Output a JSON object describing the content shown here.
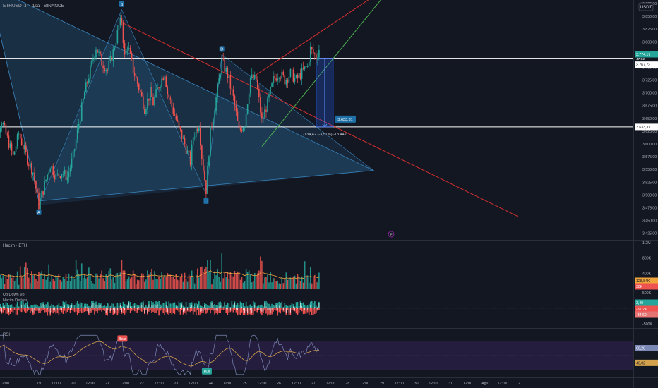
{
  "header": {
    "symbol_title": "ETHUSDT.P · 1sa · BINANCE",
    "currency": "USDT"
  },
  "colors": {
    "background": "#131722",
    "up": "#26a69a",
    "down": "#ef5350",
    "triangle_fill": "#2a6f9e",
    "trend_red": "#d32f2f",
    "trend_green": "#4caf50",
    "level_line": "#ffffff",
    "ma_volume": "#f0a53c",
    "rsi_line": "#7b87b5",
    "rsi_ma": "#d4a24c",
    "rsi_band": "#2a1f45",
    "axis_text": "#b2b5be",
    "grid": "#1e222d",
    "label_bg": "#2962ff"
  },
  "chart_data": [
    {
      "type": "candlestick",
      "pane": "price",
      "ylim": [
        3412,
        3882
      ],
      "price_ticks": [
        "3.875,00",
        "3.850,00",
        "3.825,00",
        "3.800,00",
        "3.775,00",
        "3.750,00",
        "3.725,00",
        "3.700,00",
        "3.675,00",
        "3.650,00",
        "3.625,00",
        "3.600,00",
        "3.575,00",
        "3.550,00",
        "3.525,00",
        "3.500,00",
        "3.475,00",
        "3.450,00",
        "3.425,00"
      ],
      "price_tick_values": [
        3875,
        3850,
        3825,
        3800,
        3775,
        3750,
        3725,
        3700,
        3675,
        3650,
        3625,
        3600,
        3575,
        3550,
        3525,
        3500,
        3475,
        3450,
        3425
      ],
      "x_labels": [
        "12:00",
        "19",
        "12:00",
        "20",
        "12:00",
        "21",
        "12:00",
        "22",
        "12:00",
        "23",
        "12:00",
        "24",
        "12:00",
        "25",
        "12:00",
        "26",
        "12:00",
        "27",
        "12:00",
        "28",
        "12:00",
        "29",
        "12:00",
        "30",
        "12:00",
        "31",
        "12:00",
        "Ağu",
        "12:00",
        "2"
      ],
      "x_label_hours": [
        -24,
        0,
        12,
        24,
        36,
        48,
        60,
        72,
        84,
        96,
        108,
        120,
        132,
        144,
        156,
        168,
        180,
        192,
        204,
        216,
        228,
        240,
        252,
        264,
        276,
        288,
        300,
        312,
        324,
        336
      ],
      "time_origin_label": "19",
      "close_path": [
        [
          -35,
          3520
        ],
        [
          -33,
          3660
        ],
        [
          -30,
          3620
        ],
        [
          -26,
          3645
        ],
        [
          -22,
          3610
        ],
        [
          -18,
          3575
        ],
        [
          -14,
          3620
        ],
        [
          -8,
          3570
        ],
        [
          -4,
          3545
        ],
        [
          0,
          3480
        ],
        [
          4,
          3520
        ],
        [
          8,
          3560
        ],
        [
          12,
          3535
        ],
        [
          16,
          3545
        ],
        [
          20,
          3535
        ],
        [
          24,
          3575
        ],
        [
          28,
          3640
        ],
        [
          32,
          3700
        ],
        [
          36,
          3745
        ],
        [
          40,
          3790
        ],
        [
          44,
          3760
        ],
        [
          48,
          3745
        ],
        [
          52,
          3780
        ],
        [
          56,
          3830
        ],
        [
          58,
          3842
        ],
        [
          60,
          3770
        ],
        [
          62,
          3795
        ],
        [
          66,
          3745
        ],
        [
          70,
          3710
        ],
        [
          74,
          3670
        ],
        [
          78,
          3700
        ],
        [
          80,
          3680
        ],
        [
          84,
          3715
        ],
        [
          88,
          3740
        ],
        [
          90,
          3700
        ],
        [
          94,
          3665
        ],
        [
          98,
          3630
        ],
        [
          102,
          3600
        ],
        [
          106,
          3565
        ],
        [
          108,
          3615
        ],
        [
          112,
          3640
        ],
        [
          114,
          3575
        ],
        [
          117,
          3510
        ],
        [
          120,
          3625
        ],
        [
          124,
          3690
        ],
        [
          128,
          3762
        ],
        [
          132,
          3735
        ],
        [
          136,
          3690
        ],
        [
          140,
          3625
        ],
        [
          144,
          3640
        ],
        [
          148,
          3730
        ],
        [
          152,
          3725
        ],
        [
          156,
          3645
        ],
        [
          160,
          3680
        ],
        [
          164,
          3725
        ],
        [
          168,
          3740
        ],
        [
          172,
          3725
        ],
        [
          176,
          3738
        ],
        [
          180,
          3725
        ],
        [
          184,
          3740
        ],
        [
          188,
          3752
        ],
        [
          190,
          3785
        ],
        [
          194,
          3770
        ],
        [
          196,
          3786
        ]
      ],
      "triangle": {
        "label_points": [
          {
            "label": "A",
            "hour": 0,
            "price": 3480
          },
          {
            "label": "B",
            "hour": 58,
            "price": 3863
          },
          {
            "label": "C",
            "hour": 117,
            "price": 3502
          },
          {
            "label": "D",
            "hour": 128,
            "price": 3775
          }
        ],
        "apex": {
          "hour": 234,
          "price": 3548
        },
        "top_left": {
          "hour": -35,
          "price": 3910
        }
      },
      "horizontal_levels": [
        {
          "price": 3767.73,
          "label": "3.767,73"
        },
        {
          "price": 3633.31,
          "label": "3.633,31"
        }
      ],
      "current_price": {
        "value": 3774.17,
        "label": "3.774,17",
        "countdown": "47:12"
      },
      "red_lines": [
        {
          "from": {
            "hour": 58,
            "price": 3838
          },
          "to": {
            "hour": 335,
            "price": 3458
          }
        },
        {
          "from": {
            "hour": 148,
            "price": 3728
          },
          "to": {
            "hour": 232,
            "price": 3885
          }
        }
      ],
      "green_line": {
        "from": {
          "hour": 156,
          "price": 3595
        },
        "to": {
          "hour": 240,
          "price": 3885
        }
      },
      "measure": {
        "from": {
          "hour": 200,
          "price": 3767.73
        },
        "to": {
          "hour": 200,
          "price": 3633.31
        },
        "target_label": "3.633,31",
        "text": "-134,42 (-3,57%) -13.442"
      },
      "future_event_marker": "F"
    },
    {
      "type": "bar",
      "pane": "volume",
      "title": "Hacim · ETH",
      "ylim": [
        0,
        1200000
      ],
      "ticks": [
        "1,2M",
        "800K",
        "400K"
      ],
      "tick_values": [
        1200000,
        800000,
        400000
      ],
      "last_volume_label": "128,84K",
      "last_ma_label": "38K"
    },
    {
      "type": "histogram",
      "pane": "updown",
      "title": "Up/Down Vol",
      "subtitle": "Hacim Deltası",
      "ylim": [
        -500000,
        500000
      ],
      "ticks": [
        "500K",
        "0",
        "-500K"
      ],
      "tick_values": [
        500000,
        0,
        -500000
      ],
      "values_labels": [
        "3,49",
        "-31,24",
        "-34,69"
      ]
    },
    {
      "type": "line",
      "pane": "rsi",
      "title": "RSI",
      "ylim": [
        20,
        85
      ],
      "ticks": [
        "60,28",
        "40,02"
      ],
      "tick_values": [
        60.28,
        40.02
      ],
      "band": [
        30,
        70
      ],
      "labels": [
        {
          "text": "Bear",
          "hour": 58,
          "value": 73
        },
        {
          "text": "Bull",
          "hour": 117,
          "value": 28
        }
      ]
    }
  ]
}
